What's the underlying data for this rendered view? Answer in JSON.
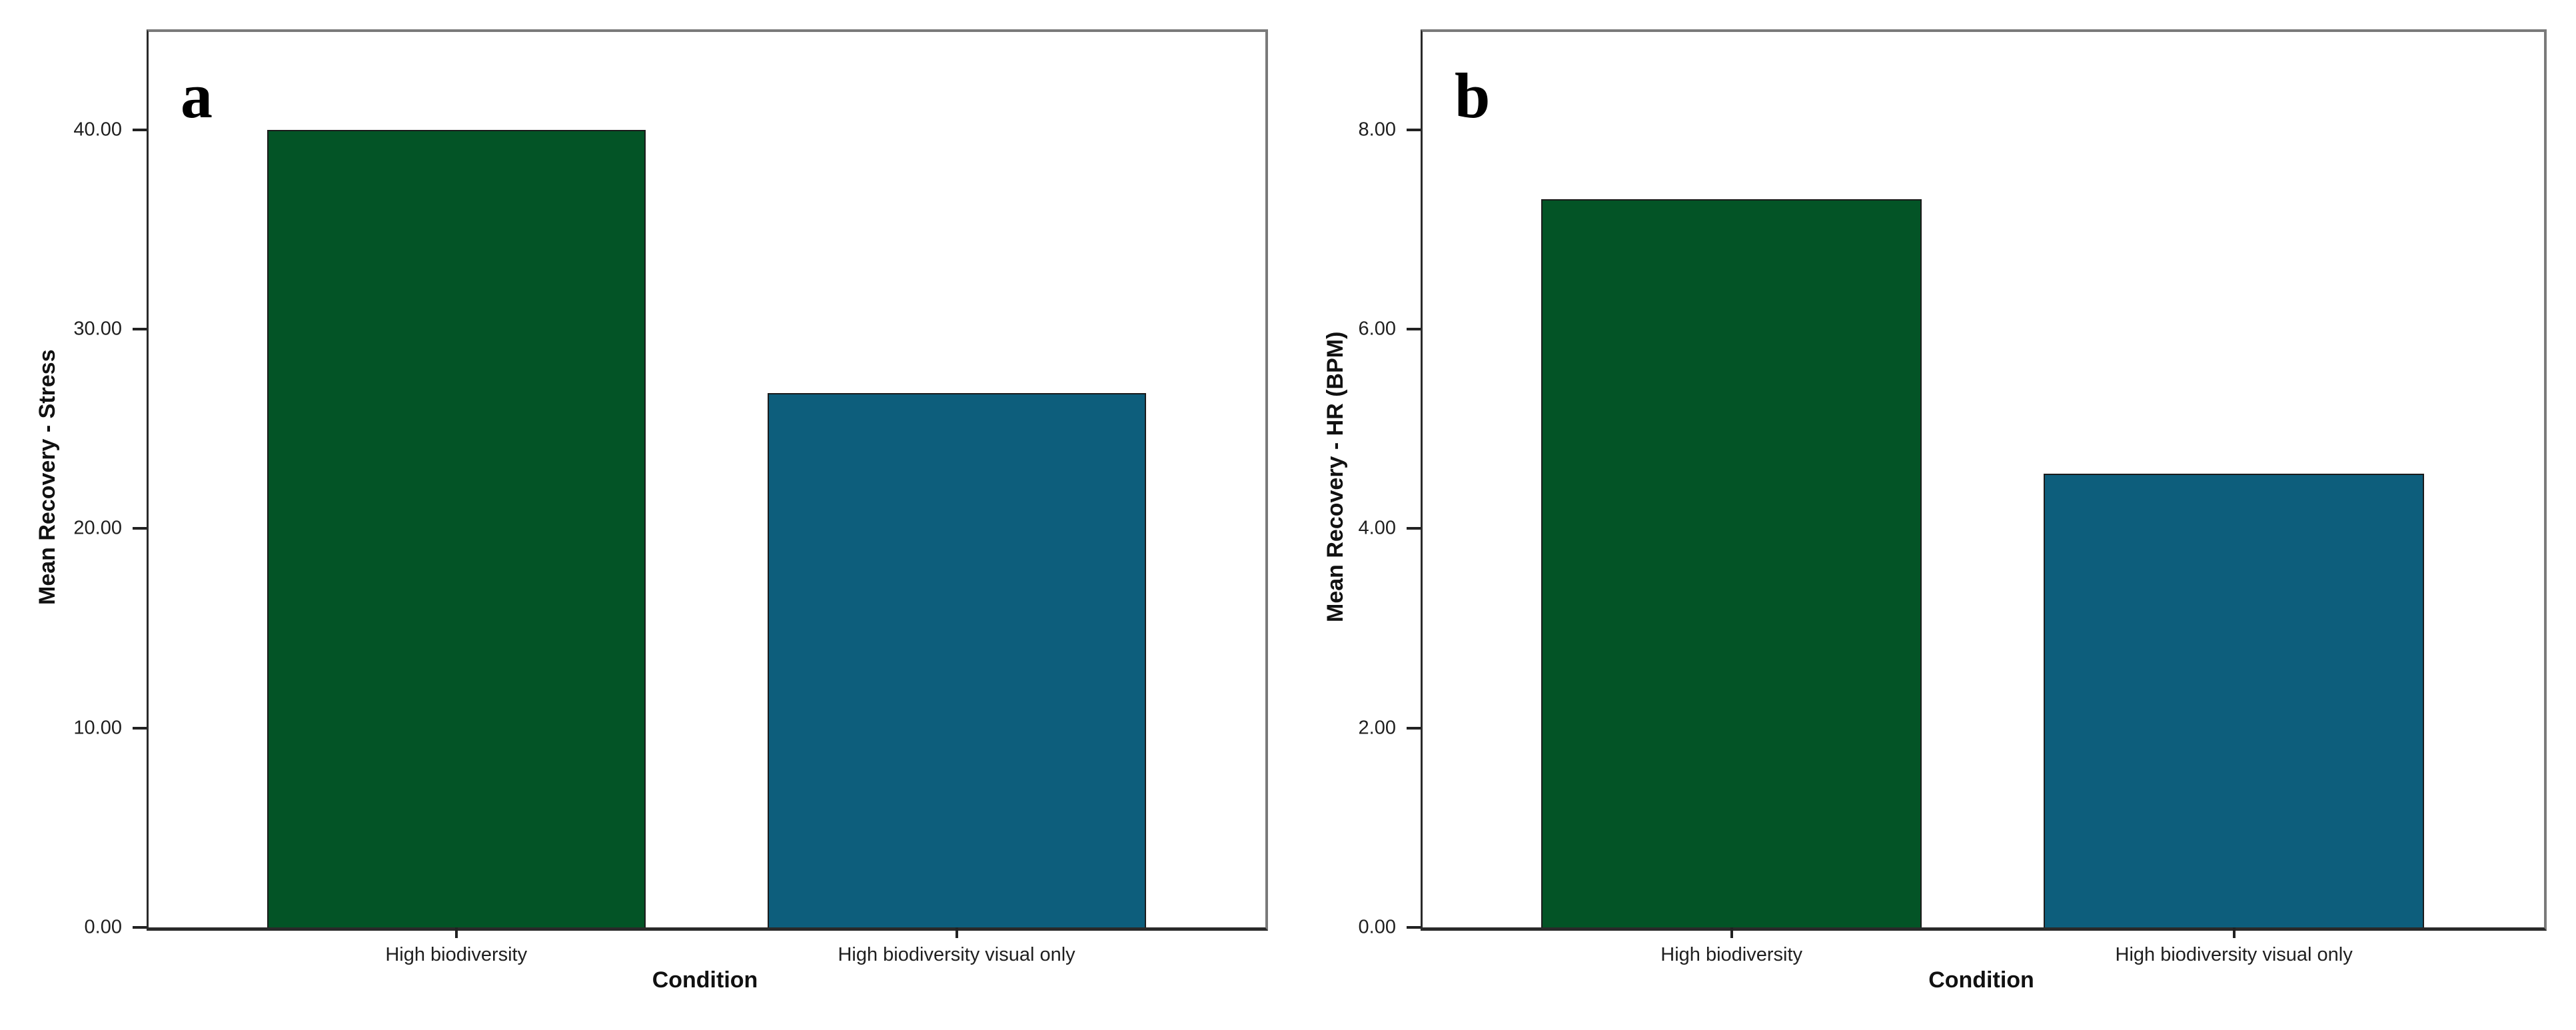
{
  "figure": {
    "background": "#ffffff",
    "frame_color": "#7a7a7a",
    "axis_color": "#222222",
    "text_color": "#1f1f1f",
    "bar_green": "#035426",
    "bar_teal": "#0D5E7C"
  },
  "chart_data": [
    {
      "type": "bar",
      "panel_label": "a",
      "title": "",
      "xlabel": "Condition",
      "ylabel": "Mean Recovery - Stress",
      "ylim": [
        0,
        44.9
      ],
      "yticks": [
        0,
        10,
        20,
        30,
        40
      ],
      "ytick_labels": [
        "0.00",
        "10.00",
        "20.00",
        "30.00",
        "40.00"
      ],
      "categories": [
        "High biodiversity",
        "High biodiversity visual only"
      ],
      "values": [
        40.0,
        26.8
      ],
      "bar_colors": [
        "#035426",
        "#0D5E7C"
      ],
      "grid": false,
      "legend": "none"
    },
    {
      "type": "bar",
      "panel_label": "b",
      "title": "",
      "xlabel": "Condition",
      "ylabel": "Mean Recovery - HR (BPM)",
      "ylim": [
        0,
        8.98
      ],
      "yticks": [
        0,
        2,
        4,
        6,
        8
      ],
      "ytick_labels": [
        "0.00",
        "2.00",
        "4.00",
        "6.00",
        "8.00"
      ],
      "categories": [
        "High biodiversity",
        "High biodiversity visual only"
      ],
      "values": [
        7.3,
        4.55
      ],
      "bar_colors": [
        "#035426",
        "#0D5E7C"
      ],
      "grid": false,
      "legend": "none"
    }
  ]
}
